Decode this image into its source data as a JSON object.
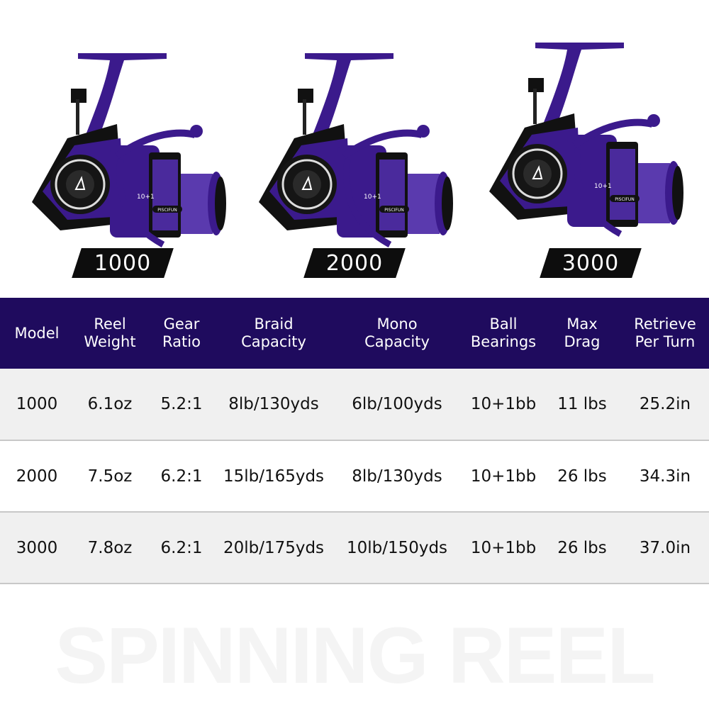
{
  "brand_logo": "PISCIFUN",
  "accent_color": "#1f0b5e",
  "reel_color": "#3b1a8c",
  "products": [
    {
      "model_label": "1000",
      "reel_marking": "10+1"
    },
    {
      "model_label": "2000",
      "reel_marking": "10+1"
    },
    {
      "model_label": "3000",
      "reel_marking": "10+1"
    }
  ],
  "table": {
    "headers": [
      [
        "Model"
      ],
      [
        "Reel",
        "Weight"
      ],
      [
        "Gear",
        "Ratio"
      ],
      [
        "Braid",
        "Capacity"
      ],
      [
        "Mono",
        "Capacity"
      ],
      [
        "Ball",
        "Bearings"
      ],
      [
        "Max",
        "Drag"
      ],
      [
        "Retrieve",
        "Per Turn"
      ]
    ],
    "rows": [
      [
        "1000",
        "6.1oz",
        "5.2:1",
        "8lb/130yds",
        "6lb/100yds",
        "10+1bb",
        "11 lbs",
        "25.2in"
      ],
      [
        "2000",
        "7.5oz",
        "6.2:1",
        "15lb/165yds",
        "8lb/130yds",
        "10+1bb",
        "26 lbs",
        "34.3in"
      ],
      [
        "3000",
        "7.8oz",
        "6.2:1",
        "20lb/175yds",
        "10lb/150yds",
        "10+1bb",
        "26 lbs",
        "37.0in"
      ]
    ]
  },
  "watermark": "SPINNING REEL"
}
